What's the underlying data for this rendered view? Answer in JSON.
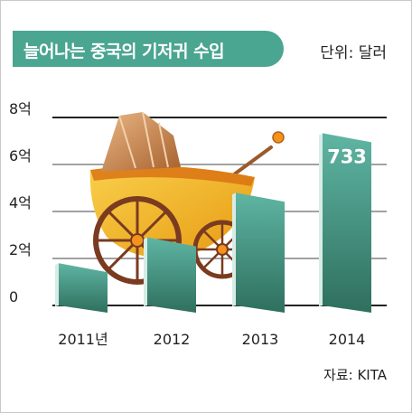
{
  "header": {
    "title": "늘어나는 중국의 기저귀 수입",
    "unit": "단위: 달러"
  },
  "footer": {
    "source": "자료: KITA"
  },
  "colors": {
    "title_bg": "#4aa591",
    "bar_top": "#5fb5a3",
    "bar_bottom": "#2f6f5e",
    "bar_side": "#d7ece6",
    "stroller_hood": "#c9854a",
    "stroller_body": "#f3b21c",
    "stroller_wheel": "#7a3b20"
  },
  "chart_data": {
    "type": "bar",
    "title": "늘어나는 중국의 기저귀 수입",
    "unit": "단위: 달러",
    "categories": [
      "2011년",
      "2012",
      "2013",
      "2014"
    ],
    "values": [
      1.8,
      2.9,
      4.8,
      7.33
    ],
    "data_labels": [
      "",
      "",
      "",
      "733"
    ],
    "y_ticks": [
      0,
      2,
      4,
      6,
      8
    ],
    "y_tick_labels": [
      "0",
      "2억",
      "4억",
      "6억",
      "8억"
    ],
    "ylim": [
      0,
      8
    ],
    "grid": true,
    "source": "자료: KITA"
  }
}
